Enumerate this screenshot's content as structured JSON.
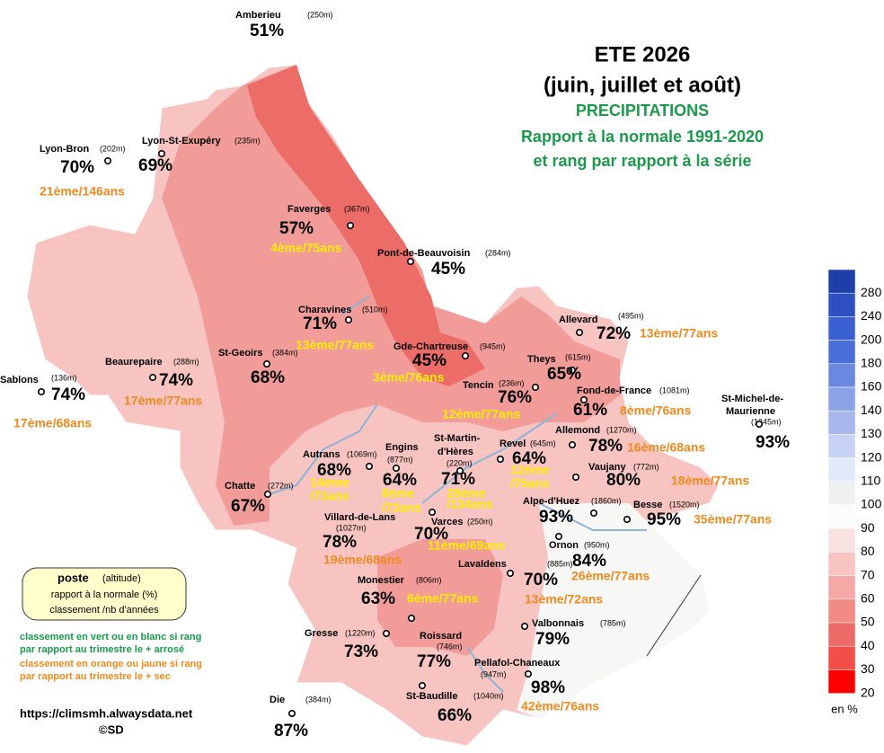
{
  "header": {
    "title": "ETE 2026",
    "period": "(juin, juillet et août)",
    "parameter": "PRECIPITATIONS",
    "subtitle1": "Rapport à la normale 1991-2020",
    "subtitle2": "et rang par rapport à la série"
  },
  "legend": {
    "station": "poste",
    "altitude": "(altitude)",
    "ratio": "rapport à la normale (%)",
    "rank": "classement /nb d'années"
  },
  "notes": {
    "green1": "classement en vert ou en blanc si rang",
    "green2": "par rapport au trimestre le + arrosé",
    "orange1": "classement en orange ou jaune si rang",
    "orange2": "par rapport au trimestre le + sec"
  },
  "footer": {
    "url": "https://climsmh.alwaysdata.net",
    "credit": "©SD"
  },
  "scale": {
    "ticks": [
      280,
      240,
      200,
      180,
      160,
      140,
      130,
      120,
      110,
      100,
      90,
      80,
      70,
      60,
      50,
      40,
      30,
      20
    ],
    "unit": "en %"
  },
  "stations": [
    {
      "name": "Amberieu",
      "altitude": "(250m)",
      "ratio": "51%"
    },
    {
      "name": "Lyon-Bron",
      "altitude": "(202m)",
      "ratio": "70%",
      "rank": "21ème/146ans"
    },
    {
      "name": "Lyon-St-Exupéry",
      "altitude": "(235m)",
      "ratio": "69%"
    },
    {
      "name": "Faverges",
      "altitude": "(367m)",
      "ratio": "57%",
      "rank": "4ème/75ans"
    },
    {
      "name": "Pont-de-Beauvoisin",
      "altitude": "(284m)",
      "ratio": "45%"
    },
    {
      "name": "Charavines",
      "altitude": "(510m)",
      "ratio": "71%",
      "rank": "13ème/77ans"
    },
    {
      "name": "Gde-Chartreuse",
      "altitude": "(945m)",
      "ratio": "45%",
      "rank": "3ème/76ans"
    },
    {
      "name": "Beaurepaire",
      "altitude": "(288m)",
      "ratio": "74%",
      "rank": "17ème/77ans"
    },
    {
      "name": "Sablons",
      "altitude": "(136m)",
      "ratio": "74%",
      "rank": "17ème/68ans"
    },
    {
      "name": "St-Geoirs",
      "altitude": "(384m)",
      "ratio": "68%"
    },
    {
      "name": "Theys",
      "altitude": "(615m)",
      "ratio": "65%"
    },
    {
      "name": "Allevard",
      "altitude": "(495m)",
      "ratio": "72%",
      "rank": "13ème/77ans"
    },
    {
      "name": "Tencin",
      "altitude": "(236m)",
      "ratio": "76%",
      "rank": "12ème/77ans"
    },
    {
      "name": "Fond-de-France",
      "altitude": "(1081m)",
      "ratio": "61%",
      "rank": "8ème/76ans"
    },
    {
      "name": [
        "St-Michel-de-",
        "Maurienne"
      ],
      "altitude": "(1345m)",
      "ratio": "93%"
    },
    {
      "name": "Allemond",
      "altitude": "(1270m)",
      "ratio": "78%",
      "rank": "16ème/68ans"
    },
    {
      "name": "Autrans",
      "altitude": "(1069m)",
      "ratio": "68%",
      "rank": [
        "14ème",
        "/73ans"
      ]
    },
    {
      "name": "Engins",
      "altitude": "(877m)",
      "ratio": "64%",
      "rank": [
        "8ème",
        "/73ans"
      ]
    },
    {
      "name": [
        "St-Martin-",
        "d'Hères"
      ],
      "altitude": "(220m)",
      "ratio": "71%",
      "rank": [
        "28ème",
        "/134ans"
      ]
    },
    {
      "name": "Revel",
      "altitude": "(645m)",
      "ratio": "64%",
      "rank": [
        "12ème",
        "/75ans"
      ]
    },
    {
      "name": "Vaujany",
      "altitude": "(772m)",
      "ratio": "80%",
      "rank": "18ème/77ans"
    },
    {
      "name": "Chatte",
      "altitude": "(272m)",
      "ratio": "67%"
    },
    {
      "name": "Villard-de-Lans",
      "altitude": "(1027m)",
      "ratio": "78%",
      "rank": "19ème/68ans"
    },
    {
      "name": "Varces",
      "altitude": "(250m)",
      "ratio": "70%",
      "rank": "11ème/69ans"
    },
    {
      "name": "Alpe-d'Huez",
      "altitude": "(1860m)",
      "ratio": "93%"
    },
    {
      "name": "Besse",
      "altitude": "(1520m)",
      "ratio": "95%",
      "rank": "35ème/77ans"
    },
    {
      "name": "Ornon",
      "altitude": "(950m)",
      "ratio": "84%",
      "rank": "26ème/77ans"
    },
    {
      "name": "Lavaldens",
      "altitude": "(885m)",
      "ratio": "70%",
      "rank": "13ème/72ans"
    },
    {
      "name": "Monestier",
      "altitude": "(806m)",
      "ratio": "63%",
      "rank": "6ème/77ans"
    },
    {
      "name": "Valbonnais",
      "altitude": "(785m)",
      "ratio": "79%"
    },
    {
      "name": "Gresse",
      "altitude": "(1220m)",
      "ratio": "73%"
    },
    {
      "name": "Roissard",
      "altitude": "(746m)",
      "ratio": "77%"
    },
    {
      "name": "Pellafol-Chaneaux",
      "altitude": "(947m)",
      "ratio": "98%",
      "rank": "42ème/76ans"
    },
    {
      "name": "St-Baudille",
      "altitude": "(1040m)",
      "ratio": "66%"
    },
    {
      "name": "Die",
      "altitude": "(384m)",
      "ratio": "87%"
    }
  ]
}
